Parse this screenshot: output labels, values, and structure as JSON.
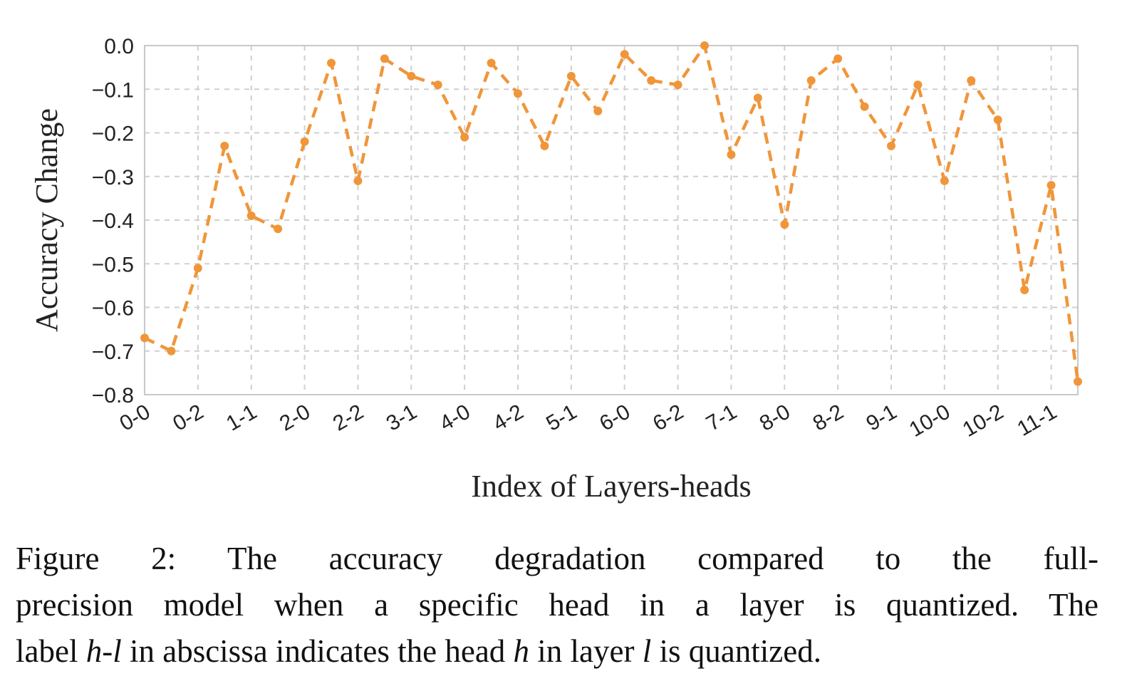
{
  "chart_data": {
    "type": "line",
    "xlabel": "Index of Layers-heads",
    "ylabel": "Accuracy Change",
    "ylim": [
      -0.8,
      0.0
    ],
    "yticks": [
      "0.0",
      "−0.1",
      "−0.2",
      "−0.3",
      "−0.4",
      "−0.5",
      "−0.6",
      "−0.7",
      "−0.8"
    ],
    "ytick_values": [
      0.0,
      -0.1,
      -0.2,
      -0.3,
      -0.4,
      -0.5,
      -0.6,
      -0.7,
      -0.8
    ],
    "xtick_labels": [
      "0-0",
      "0-2",
      "1-1",
      "2-0",
      "2-2",
      "3-1",
      "4-0",
      "4-2",
      "5-1",
      "6-0",
      "6-2",
      "7-1",
      "8-0",
      "8-2",
      "9-1",
      "10-0",
      "10-2",
      "11-1"
    ],
    "x": [
      "0-0",
      "0-1",
      "0-2",
      "1-0",
      "1-1",
      "1-2",
      "2-0",
      "2-1",
      "2-2",
      "3-0",
      "3-1",
      "3-2",
      "4-0",
      "4-1",
      "4-2",
      "5-0",
      "5-1",
      "5-2",
      "6-0",
      "6-1",
      "6-2",
      "7-0",
      "7-1",
      "7-2",
      "8-0",
      "8-1",
      "8-2",
      "9-0",
      "9-1",
      "9-2",
      "10-0",
      "10-1",
      "10-2",
      "11-0",
      "11-1",
      "11-2"
    ],
    "series": [
      {
        "color": "#f0963a",
        "linestyle": "dashed",
        "marker": "dot",
        "values": [
          -0.67,
          -0.7,
          -0.51,
          -0.23,
          -0.39,
          -0.42,
          -0.22,
          -0.04,
          -0.31,
          -0.03,
          -0.07,
          -0.09,
          -0.21,
          -0.04,
          -0.11,
          -0.23,
          -0.07,
          -0.15,
          -0.02,
          -0.08,
          -0.09,
          0.0,
          -0.25,
          -0.12,
          -0.41,
          -0.08,
          -0.03,
          -0.14,
          -0.23,
          -0.09,
          -0.31,
          -0.08,
          -0.17,
          -0.56,
          -0.32,
          -0.77
        ]
      }
    ],
    "grid": true
  },
  "caption": {
    "line1": "Figure 2:  The accuracy degradation compared to the full-",
    "line2": "precision model when a specific head in a layer is quantized. The",
    "line3_a": "label ",
    "line3_h": "h",
    "line3_dash": "-",
    "line3_l": "l",
    "line3_b": " in abscissa indicates the head ",
    "line3_h2": "h",
    "line3_c": " in layer ",
    "line3_l2": "l",
    "line3_d": " is quantized."
  }
}
